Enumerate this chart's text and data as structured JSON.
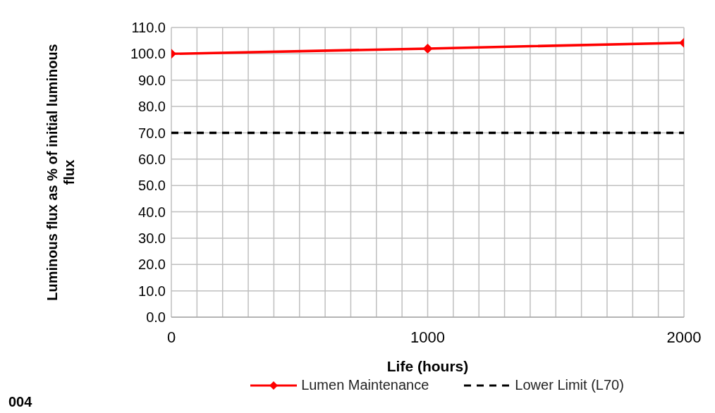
{
  "chart_data": {
    "type": "line",
    "x": [
      0,
      1000,
      2000
    ],
    "series": [
      {
        "name": "Lumen Maintenance",
        "color": "#ff0000",
        "values": [
          100.0,
          102.0,
          104.2
        ],
        "marker": "diamond",
        "line_style": "solid"
      },
      {
        "name": "Lower Limit (L70)",
        "color": "#000000",
        "values": [
          70,
          70,
          70
        ],
        "marker": "none",
        "line_style": "dashed"
      }
    ],
    "xlabel": "Life (hours)",
    "ylabel": "Luminous flux as % of initial luminous flux",
    "xlim": [
      0,
      2000
    ],
    "xticks": [
      0,
      {
        "value": 100,
        "label": null
      },
      {
        "value": 200,
        "label": null
      },
      {
        "value": 300,
        "label": null
      },
      {
        "value": 400,
        "label": null
      },
      {
        "value": 500,
        "label": null
      },
      {
        "value": 600,
        "label": null
      },
      {
        "value": 700,
        "label": null
      },
      {
        "value": 800,
        "label": null
      },
      {
        "value": 900,
        "label": null
      },
      1000,
      {
        "value": 1100,
        "label": null
      },
      {
        "value": 1200,
        "label": null
      },
      {
        "value": 1300,
        "label": null
      },
      {
        "value": 1400,
        "label": null
      },
      {
        "value": 1500,
        "label": null
      },
      {
        "value": 1600,
        "label": null
      },
      {
        "value": 1700,
        "label": null
      },
      {
        "value": 1800,
        "label": null
      },
      {
        "value": 1900,
        "label": null
      },
      2000
    ],
    "ylim": [
      0,
      110
    ],
    "yticks": [
      {
        "value": 0,
        "label": "0.0"
      },
      {
        "value": 10,
        "label": "10.0"
      },
      {
        "value": 20,
        "label": "20.0"
      },
      {
        "value": 30,
        "label": "30.0"
      },
      {
        "value": 40,
        "label": "40.0"
      },
      {
        "value": 50,
        "label": "50.0"
      },
      {
        "value": 60,
        "label": "60.0"
      },
      {
        "value": 70,
        "label": "70.0"
      },
      {
        "value": 80,
        "label": "80.0"
      },
      {
        "value": 90,
        "label": "90.0"
      },
      {
        "value": 100,
        "label": "100.0"
      },
      {
        "value": 110,
        "label": "110.0"
      }
    ],
    "grid": true,
    "legend": "bottom",
    "annotations": [
      "004"
    ]
  }
}
